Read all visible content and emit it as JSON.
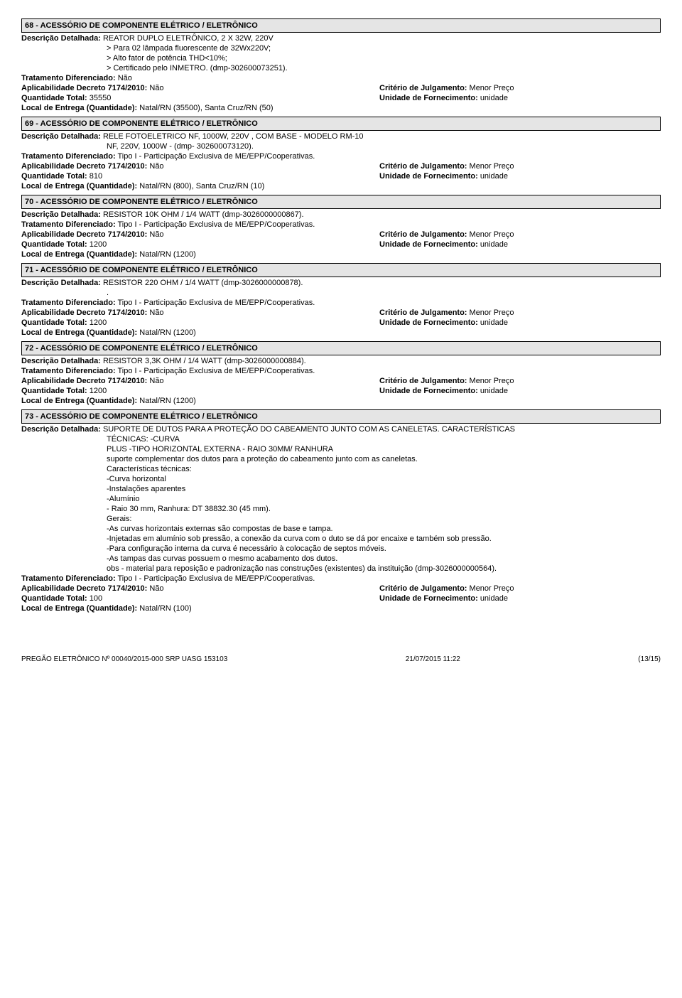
{
  "items": [
    {
      "header": "68 - ACESSÓRIO DE COMPONENTE ELÉTRICO / ELETRÔNICO",
      "descLabel": "Descrição Detalhada:",
      "descFirst": "REATOR DUPLO ELETRÔNICO, 2 X 32W, 220V",
      "descLines": [
        "> Para 02 lâmpada fluorescente de 32Wx220V;",
        "> Alto fator de potência THD<10%;",
        "> Certificado pelo INMETRO. (dmp-302600073251)."
      ],
      "tratLabel": "Tratamento Diferenciado:",
      "trat": "Não",
      "aplicLabel": "Aplicabilidade Decreto 7174/2010:",
      "aplic": "Não",
      "critLabel": "Critério de Julgamento:",
      "crit": "Menor Preço",
      "qtyLabel": "Quantidade Total:",
      "qty": "35550",
      "unidLabel": "Unidade de Fornecimento:",
      "unid": "unidade",
      "localLabel": "Local de Entrega (Quantidade):",
      "local": "Natal/RN (35500), Santa Cruz/RN (50)"
    },
    {
      "header": "69 - ACESSÓRIO DE COMPONENTE ELÉTRICO / ELETRÔNICO",
      "descLabel": "Descrição Detalhada:",
      "descFirst": "RELE FOTOELETRICO NF, 1000W, 220V , COM BASE - MODELO RM-10",
      "descLines": [
        "NF, 220V, 1000W - (dmp- 302600073120)."
      ],
      "tratLabel": "Tratamento Diferenciado:",
      "trat": "Tipo I - Participação Exclusiva de ME/EPP/Cooperativas.",
      "aplicLabel": "Aplicabilidade Decreto 7174/2010:",
      "aplic": "Não",
      "critLabel": "Critério de Julgamento:",
      "crit": "Menor Preço",
      "qtyLabel": "Quantidade Total:",
      "qty": "810",
      "unidLabel": "Unidade de Fornecimento:",
      "unid": "unidade",
      "localLabel": "Local de Entrega (Quantidade):",
      "local": "Natal/RN (800), Santa Cruz/RN (10)"
    },
    {
      "header": "70 - ACESSÓRIO DE COMPONENTE ELÉTRICO / ELETRÔNICO",
      "descLabel": "Descrição Detalhada:",
      "descFirst": "RESISTOR 10K OHM / 1/4 WATT (dmp-3026000000867).",
      "descLines": [],
      "tratLabel": "Tratamento Diferenciado:",
      "trat": "Tipo I - Participação Exclusiva de ME/EPP/Cooperativas.",
      "aplicLabel": "Aplicabilidade Decreto 7174/2010:",
      "aplic": "Não",
      "critLabel": "Critério de Julgamento:",
      "crit": "Menor Preço",
      "qtyLabel": "Quantidade Total:",
      "qty": "1200",
      "unidLabel": "Unidade de Fornecimento:",
      "unid": "unidade",
      "localLabel": "Local de Entrega (Quantidade):",
      "local": "Natal/RN (1200)"
    },
    {
      "header": "71 - ACESSÓRIO DE COMPONENTE ELÉTRICO / ELETRÔNICO",
      "descLabel": "Descrição Detalhada:",
      "descFirst": "RESISTOR 220 OHM / 1/4 WATT (dmp-3026000000878).",
      "descLines": [
        "."
      ],
      "tratLabel": "Tratamento Diferenciado:",
      "trat": "Tipo I - Participação Exclusiva de ME/EPP/Cooperativas.",
      "aplicLabel": "Aplicabilidade Decreto 7174/2010:",
      "aplic": "Não",
      "critLabel": "Critério de Julgamento:",
      "crit": "Menor Preço",
      "qtyLabel": "Quantidade Total:",
      "qty": "1200",
      "unidLabel": "Unidade de Fornecimento:",
      "unid": "unidade",
      "localLabel": "Local de Entrega (Quantidade):",
      "local": "Natal/RN (1200)"
    },
    {
      "header": "72 - ACESSÓRIO DE COMPONENTE ELÉTRICO / ELETRÔNICO",
      "descLabel": "Descrição Detalhada:",
      "descFirst": "RESISTOR 3,3K OHM / 1/4 WATT  (dmp-3026000000884).",
      "descLines": [],
      "tratLabel": "Tratamento Diferenciado:",
      "trat": "Tipo I - Participação Exclusiva de ME/EPP/Cooperativas.",
      "aplicLabel": "Aplicabilidade Decreto 7174/2010:",
      "aplic": "Não",
      "critLabel": "Critério de Julgamento:",
      "crit": "Menor Preço",
      "qtyLabel": "Quantidade Total:",
      "qty": "1200",
      "unidLabel": "Unidade de Fornecimento:",
      "unid": "unidade",
      "localLabel": "Local de Entrega (Quantidade):",
      "local": "Natal/RN (1200)"
    },
    {
      "header": "73 - ACESSÓRIO DE COMPONENTE ELÉTRICO / ELETRÔNICO",
      "descLabel": "Descrição Detalhada:",
      "descFirst": "SUPORTE DE DUTOS PARA A PROTEÇÃO DO CABEAMENTO JUNTO COM AS CANELETAS. CARACTERÍSTICAS",
      "descLines": [
        "TÉCNICAS: -CURVA",
        "PLUS -TIPO HORIZONTAL EXTERNA - RAIO 30MM/ RANHURA",
        "suporte complementar dos dutos para a proteção do cabeamento junto com as caneletas.",
        "Características técnicas:",
        "-Curva horizontal",
        "-Instalações aparentes",
        "-Alumínio",
        "- Raio 30 mm, Ranhura: DT 38832.30 (45 mm).",
        "Gerais:",
        "-As curvas horizontais externas são compostas de base e tampa.",
        "-Injetadas em alumínio sob pressão, a conexão da curva com o duto se dá por encaixe e também sob pressão.",
        "-Para configuração interna da curva é necessário à colocação de septos móveis.",
        "-As tampas das curvas possuem o mesmo acabamento dos dutos.",
        "obs - material para reposição e padronização nas construções (existentes) da instituição (dmp-3026000000564)."
      ],
      "tratLabel": "Tratamento Diferenciado:",
      "trat": "Tipo I - Participação Exclusiva de ME/EPP/Cooperativas.",
      "aplicLabel": "Aplicabilidade Decreto 7174/2010:",
      "aplic": "Não",
      "critLabel": "Critério de Julgamento:",
      "crit": "Menor Preço",
      "qtyLabel": "Quantidade Total:",
      "qty": "100",
      "unidLabel": "Unidade de Fornecimento:",
      "unid": "unidade",
      "localLabel": "Local de Entrega (Quantidade):",
      "local": "Natal/RN (100)"
    }
  ],
  "footer": {
    "left": "PREGÃO ELETRÔNICO  Nº 00040/2015-000 SRP UASG 153103",
    "center": "21/07/2015  11:22",
    "right": "(13/15)"
  }
}
